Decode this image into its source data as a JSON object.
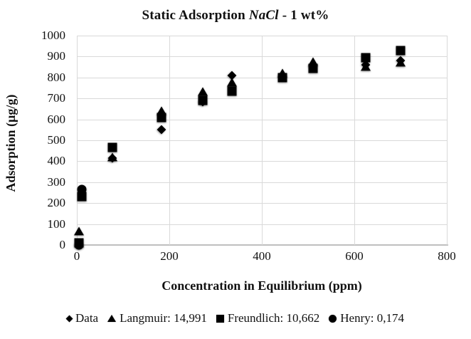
{
  "title": {
    "prefix": "Static Adsorption ",
    "italic": "NaCl",
    "suffix": " - 1 wt%"
  },
  "y_axis": {
    "title": "Adsorption (µg/g)",
    "tick_labels": [
      "0",
      "100",
      "200",
      "300",
      "400",
      "500",
      "600",
      "700",
      "800",
      "900",
      "1000"
    ],
    "tick_values": [
      0,
      100,
      200,
      300,
      400,
      500,
      600,
      700,
      800,
      900,
      1000
    ]
  },
  "x_axis": {
    "title": "Concentration in Equilibrium (ppm)",
    "tick_labels": [
      "0",
      "200",
      "400",
      "600",
      "800"
    ],
    "tick_values": [
      0,
      200,
      400,
      600,
      800
    ]
  },
  "legend": {
    "items": [
      {
        "marker": "diamond",
        "label": "Data"
      },
      {
        "marker": "triangle",
        "label": "Langmuir: 14,991"
      },
      {
        "marker": "square",
        "label": "Freundlich: 10,662"
      },
      {
        "marker": "circle",
        "label": "Henry: 0,174"
      }
    ]
  },
  "colors": {
    "marker": "#000000",
    "gridline": "#d9d9d9",
    "axis_line": "#bfbfbf",
    "text": "#111111"
  },
  "chart_data": {
    "type": "scatter",
    "title": "Static Adsorption NaCl - 1 wt%",
    "xlabel": "Concentration in Equilibrium (ppm)",
    "ylabel": "Adsorption (µg/g)",
    "xlim": [
      0,
      800
    ],
    "ylim": [
      0,
      1000
    ],
    "grid": true,
    "legend_position": "bottom",
    "series": [
      {
        "name": "Data",
        "marker": "diamond",
        "points": [
          [
            4,
            0
          ],
          [
            77,
            415
          ],
          [
            183,
            550
          ],
          [
            273,
            685
          ],
          [
            335,
            810
          ],
          [
            445,
            805
          ],
          [
            510,
            855
          ],
          [
            625,
            860
          ],
          [
            700,
            880
          ]
        ]
      },
      {
        "name": "Langmuir: 14,991",
        "marker": "triangle",
        "points": [
          [
            4,
            65
          ],
          [
            77,
            420
          ],
          [
            183,
            640
          ],
          [
            273,
            730
          ],
          [
            335,
            775
          ],
          [
            445,
            820
          ],
          [
            510,
            875
          ],
          [
            625,
            850
          ],
          [
            700,
            870
          ]
        ]
      },
      {
        "name": "Freundlich: 10,662",
        "marker": "square",
        "points": [
          [
            4,
            10
          ],
          [
            10,
            230
          ],
          [
            77,
            465
          ],
          [
            183,
            610
          ],
          [
            273,
            690
          ],
          [
            335,
            735
          ],
          [
            445,
            800
          ],
          [
            510,
            845
          ],
          [
            625,
            895
          ],
          [
            700,
            930
          ]
        ]
      },
      {
        "name": "Henry: 0,174",
        "marker": "circle",
        "points": [
          [
            4,
            0
          ],
          [
            10,
            265
          ]
        ]
      }
    ]
  }
}
